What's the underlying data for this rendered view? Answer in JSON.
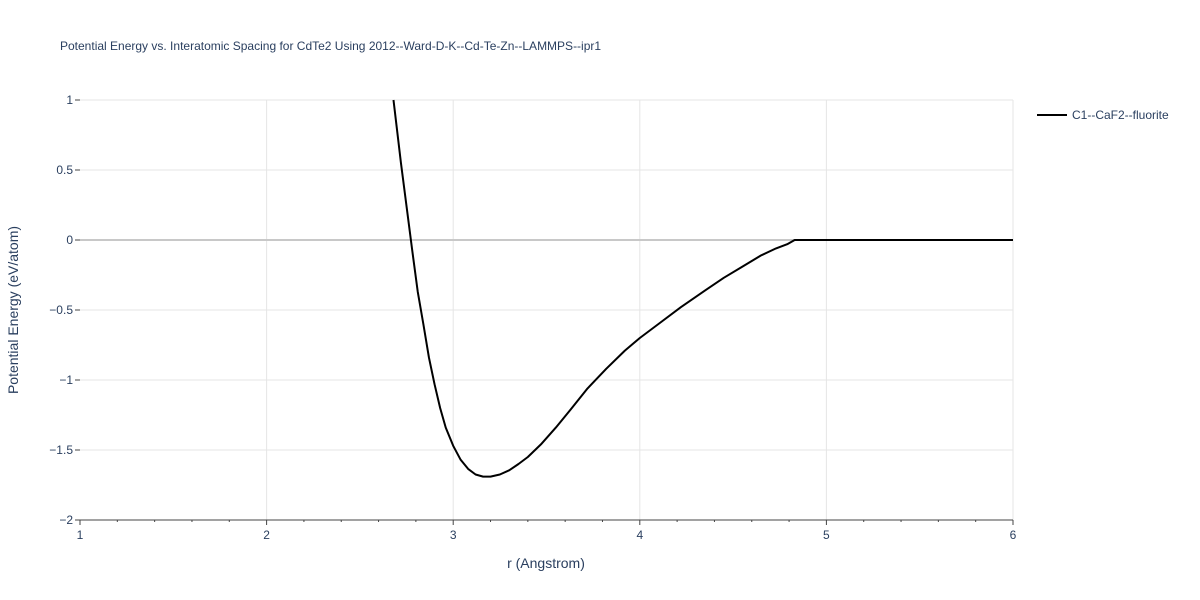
{
  "chart_data": {
    "type": "line",
    "title": "Potential Energy vs. Interatomic Spacing for CdTe2 Using 2012--Ward-D-K--Cd-Te-Zn--LAMMPS--ipr1",
    "xlabel": "r (Angstrom)",
    "ylabel": "Potential Energy (eV/atom)",
    "xlim": [
      1,
      6
    ],
    "ylim": [
      -2,
      1
    ],
    "x_ticks": [
      "1",
      "2",
      "3",
      "4",
      "5",
      "6"
    ],
    "y_ticks": [
      "1",
      "0.5",
      "0",
      "−0.5",
      "−1",
      "−1.5",
      "−2"
    ],
    "grid": true,
    "legend_position": "top-right",
    "series": [
      {
        "name": "C1--CaF2--fluorite",
        "color": "#000000",
        "x": [
          2.68,
          2.72,
          2.75,
          2.78,
          2.81,
          2.84,
          2.87,
          2.9,
          2.93,
          2.96,
          3.0,
          3.04,
          3.08,
          3.12,
          3.16,
          3.2,
          3.25,
          3.3,
          3.35,
          3.4,
          3.47,
          3.55,
          3.63,
          3.72,
          3.82,
          3.92,
          4.0,
          4.1,
          4.22,
          4.35,
          4.45,
          4.55,
          4.65,
          4.73,
          4.79,
          4.83,
          4.9,
          5.0,
          5.5,
          6.0
        ],
        "y": [
          1.0,
          0.55,
          0.24,
          -0.07,
          -0.37,
          -0.6,
          -0.84,
          -1.03,
          -1.2,
          -1.34,
          -1.47,
          -1.57,
          -1.635,
          -1.675,
          -1.69,
          -1.69,
          -1.675,
          -1.645,
          -1.6,
          -1.55,
          -1.46,
          -1.34,
          -1.21,
          -1.06,
          -0.92,
          -0.79,
          -0.7,
          -0.6,
          -0.48,
          -0.36,
          -0.27,
          -0.19,
          -0.11,
          -0.06,
          -0.03,
          0.0,
          0.0,
          0.0,
          0.0,
          0.0
        ]
      }
    ]
  }
}
